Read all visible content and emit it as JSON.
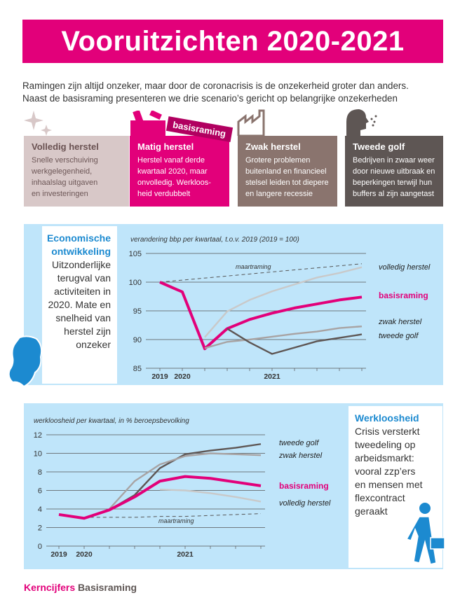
{
  "title": "Vooruitzichten 2020-2021",
  "intro": [
    "Ramingen zijn altijd onzeker, maar door de coronacrisis is de onzekerheid groter dan anders.",
    "Naast de basisraming presenteren we drie scenario’s gericht op belangrijke onzekerheden"
  ],
  "badge": "basisraming",
  "cards": [
    {
      "title": "Volledig herstel",
      "lines": [
        "Snelle verschuiving",
        "werkgelegenheid,",
        "inhaalslag uitgaven",
        "en investeringen"
      ],
      "icon": "sparkle-icon"
    },
    {
      "title": "Matig herstel",
      "lines": [
        "Herstel vanaf derde",
        "kwartaal 2020, maar",
        "onvolledig. Werkloos-",
        "heid verdubbelt"
      ],
      "icon": "tools-icon"
    },
    {
      "title": "Zwak herstel",
      "lines": [
        "Grotere problemen",
        "buitenland en financieel",
        "stelsel leiden tot diepere",
        "en langere recessie"
      ],
      "icon": "factory-icon"
    },
    {
      "title": "Tweede golf",
      "lines": [
        "Bedrijven in zwaar weer",
        "door nieuwe uitbraak en",
        "beperkingen terwijl hun",
        "buffers al zijn aangetast"
      ],
      "icon": "sneeze-icon"
    }
  ],
  "panel1": {
    "lead": [
      "Economische",
      "ontwikkeling"
    ],
    "lines": [
      "Uitzonderlijke",
      "terugval van",
      "activiteiten in",
      "2020. Mate en",
      "snelheid van",
      "herstel zijn",
      "onzeker"
    ],
    "icon": "netherlands-map-icon"
  },
  "panel2": {
    "lead": [
      "Werkloosheid"
    ],
    "lines": [
      "Crisis versterkt",
      "tweedeling op",
      "arbeidsmarkt:",
      "vooral zzp’ers",
      "en mensen met",
      "flexcontract",
      "geraakt"
    ],
    "icon": "walking-person-icon"
  },
  "footer": {
    "a": "Kerncijfers",
    "b": "Basisraming"
  },
  "colors": {
    "accent": "#e2007a",
    "panel": "#bfe5fa"
  },
  "chart_data": [
    {
      "type": "line",
      "subtitle": "verandering bbp per kwartaal, t.o.v. 2019 (2019 = 100)",
      "yticks": [
        "105",
        "100",
        "95",
        "90",
        "85"
      ],
      "xticks": [
        "2019",
        "2020",
        "2021"
      ],
      "ylim": [
        85,
        105
      ],
      "x": [
        0,
        1,
        2,
        3,
        4,
        5,
        6,
        7,
        8,
        9
      ],
      "series": [
        {
          "name": "maartraming",
          "color": "#555555",
          "dashed": true,
          "values": [
            100,
            null,
            null,
            null,
            null,
            null,
            null,
            null,
            null,
            103.2
          ]
        },
        {
          "name": "volledig herstel",
          "color": "#c9c9c9",
          "values": [
            null,
            null,
            90.4,
            94.9,
            96.9,
            98.4,
            99.6,
            100.8,
            101.6,
            102.6
          ]
        },
        {
          "name": "basisraming",
          "color": "#e2007a",
          "bold": true,
          "values": [
            100,
            98.3,
            88.4,
            91.9,
            93.5,
            94.6,
            95.5,
            96.2,
            96.9,
            97.4
          ]
        },
        {
          "name": "zwak herstel",
          "color": "#a8a3a3",
          "values": [
            null,
            null,
            88.5,
            89.6,
            90.0,
            90.5,
            91.0,
            91.4,
            92.0,
            92.3
          ]
        },
        {
          "name": "tweede golf",
          "color": "#5e5654",
          "values": [
            null,
            null,
            null,
            91.9,
            89.5,
            87.5,
            88.6,
            89.7,
            90.3,
            90.9
          ]
        }
      ]
    },
    {
      "type": "line",
      "subtitle": "werkloosheid per kwartaal, in % beroepsbevolking",
      "yticks": [
        "12",
        "10",
        "8",
        "6",
        "4",
        "2",
        "0"
      ],
      "xticks": [
        "2019",
        "2020",
        "2021"
      ],
      "ylim": [
        0,
        12
      ],
      "x": [
        0,
        1,
        2,
        3,
        4,
        5,
        6,
        7,
        8
      ],
      "series": [
        {
          "name": "maartraming",
          "color": "#555555",
          "dashed": true,
          "values": [
            3.4,
            3.1,
            3.1,
            3.1,
            3.2,
            3.2,
            3.3,
            3.4,
            3.5
          ]
        },
        {
          "name": "tweede golf",
          "color": "#5e5654",
          "values": [
            null,
            null,
            3.9,
            5.5,
            8.4,
            9.9,
            10.3,
            10.6,
            11.0
          ]
        },
        {
          "name": "zwak herstel",
          "color": "#a8a3a3",
          "values": [
            null,
            null,
            4.0,
            7.0,
            8.8,
            9.7,
            10.0,
            9.9,
            9.8
          ]
        },
        {
          "name": "basisraming",
          "color": "#e2007a",
          "bold": true,
          "values": [
            3.4,
            3.0,
            3.9,
            5.3,
            7.0,
            7.5,
            7.3,
            6.9,
            6.5
          ]
        },
        {
          "name": "volledig herstel",
          "color": "#c9c9c9",
          "values": [
            null,
            null,
            null,
            null,
            6.1,
            6.0,
            5.7,
            5.3,
            4.8
          ]
        }
      ]
    }
  ]
}
